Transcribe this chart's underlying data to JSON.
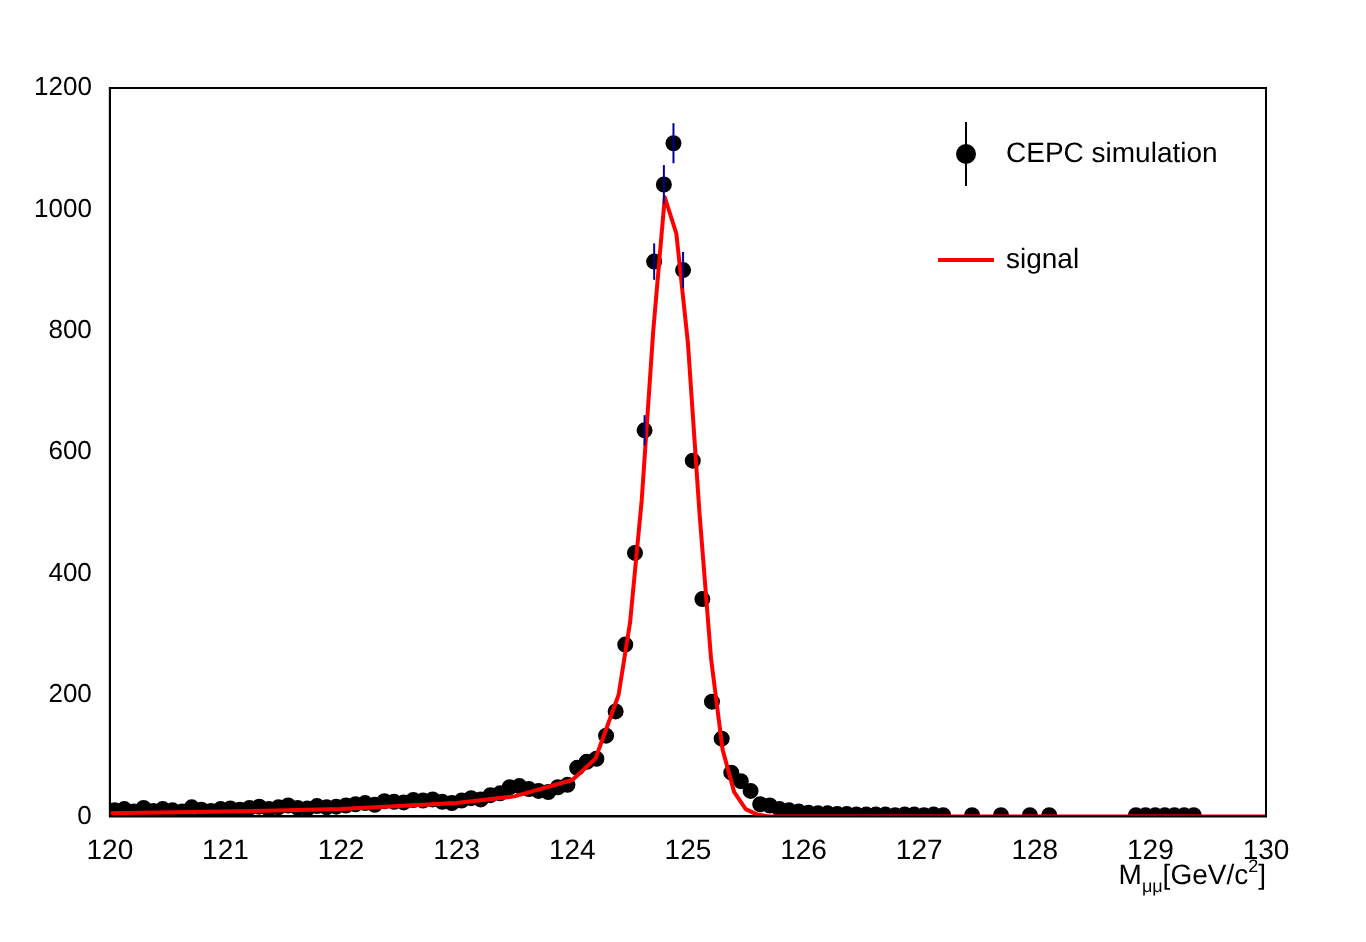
{
  "chart_data": {
    "type": "scatter",
    "xlabel": "M$_{μμ}$[GeV/c$^{2}$]",
    "xlim": [
      120,
      130
    ],
    "xticks": [
      120,
      121,
      122,
      123,
      124,
      125,
      126,
      127,
      128,
      129,
      130
    ],
    "ylim": [
      0,
      1200
    ],
    "yticks": [
      0,
      200,
      400,
      600,
      800,
      1000,
      1200
    ],
    "grid": false,
    "legend": "top right",
    "series": [
      {
        "name": "CEPC simulation",
        "type": "scatter",
        "color": "#000000",
        "marker": "circle",
        "x": [
          120.042,
          120.125,
          120.208,
          120.292,
          120.375,
          120.458,
          120.542,
          120.625,
          120.708,
          120.792,
          120.875,
          120.958,
          121.042,
          121.125,
          121.208,
          121.292,
          121.375,
          121.458,
          121.542,
          121.625,
          121.708,
          121.792,
          121.875,
          121.958,
          122.042,
          122.125,
          122.208,
          122.292,
          122.375,
          122.458,
          122.542,
          122.625,
          122.708,
          122.792,
          122.875,
          122.958,
          123.042,
          123.125,
          123.208,
          123.292,
          123.375,
          123.458,
          123.542,
          123.625,
          123.708,
          123.792,
          123.875,
          123.958,
          124.042,
          124.125,
          124.208,
          124.292,
          124.375,
          124.458,
          124.542,
          124.625,
          124.708,
          124.792,
          124.875,
          124.958,
          125.042,
          125.125,
          125.208,
          125.292,
          125.375,
          125.458,
          125.542,
          125.625,
          125.708,
          125.792,
          125.875,
          125.958,
          126.042,
          126.125,
          126.208,
          126.292,
          126.375,
          126.458,
          126.542,
          126.625,
          126.708,
          126.792,
          126.875,
          126.958,
          127.042,
          127.125,
          127.208,
          127.458,
          127.708,
          127.958,
          128.125,
          128.875,
          128.958,
          129.042,
          129.125,
          129.208,
          129.292,
          129.375
        ],
        "values": [
          10,
          12,
          8,
          14,
          9,
          12,
          10,
          8,
          15,
          11,
          9,
          12,
          13,
          11,
          14,
          16,
          12,
          15,
          18,
          14,
          13,
          17,
          15,
          16,
          18,
          20,
          22,
          19,
          25,
          24,
          23,
          27,
          26,
          28,
          24,
          22,
          26,
          30,
          28,
          35,
          38,
          48,
          50,
          45,
          42,
          40,
          48,
          52,
          80,
          90,
          95,
          133,
          173,
          283,
          434,
          636,
          914,
          1041,
          1109,
          900,
          586,
          358,
          189,
          128,
          72,
          58,
          42,
          20,
          18,
          12,
          10,
          8,
          6,
          5,
          5,
          4,
          4,
          3,
          3,
          3,
          3,
          2,
          3,
          3,
          2,
          3,
          2,
          2,
          2,
          2,
          2,
          2,
          2,
          2,
          2,
          2,
          2,
          2
        ],
        "errors": [
          null,
          null,
          null,
          null,
          null,
          null,
          null,
          null,
          null,
          null,
          null,
          null,
          null,
          null,
          null,
          null,
          null,
          null,
          null,
          null,
          null,
          null,
          null,
          null,
          null,
          null,
          null,
          null,
          null,
          null,
          null,
          null,
          null,
          null,
          null,
          null,
          null,
          null,
          null,
          null,
          null,
          null,
          null,
          null,
          null,
          null,
          null,
          null,
          null,
          null,
          null,
          null,
          null,
          null,
          null,
          25,
          30,
          32,
          33,
          30,
          null,
          null,
          null,
          null,
          null,
          null,
          null,
          null,
          null,
          null,
          null,
          null,
          null,
          null,
          null,
          null,
          null,
          null,
          null,
          null,
          null,
          null,
          null,
          null,
          null,
          null,
          null,
          null,
          null,
          null,
          null,
          null,
          null,
          null,
          null,
          null,
          null,
          null
        ]
      },
      {
        "name": "signal",
        "type": "line",
        "color": "#ff0000",
        "marker": "none",
        "line_style": "solid",
        "x": [
          120,
          121,
          122,
          123,
          123.5,
          124,
          124.2,
          124.4,
          124.5,
          124.6,
          124.7,
          124.8,
          124.9,
          125,
          125.1,
          125.2,
          125.3,
          125.4,
          125.5,
          125.6,
          125.7,
          126,
          130
        ],
        "values": [
          5,
          8,
          12,
          22,
          33,
          60,
          95,
          200,
          320,
          520,
          800,
          1020,
          960,
          780,
          500,
          260,
          110,
          40,
          12,
          3,
          0,
          0,
          0
        ]
      }
    ]
  }
}
